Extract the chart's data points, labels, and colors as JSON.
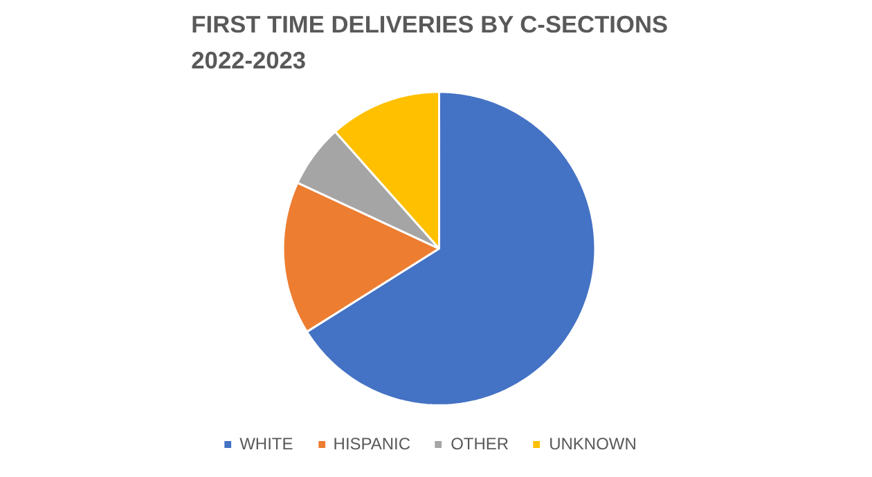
{
  "chart_data": {
    "type": "pie",
    "title": "FIRST TIME DELIVERIES BY C-SECTIONS\n2022-2023",
    "categories": [
      "WHITE",
      "HISPANIC",
      "OTHER",
      "UNKNOWN"
    ],
    "values": [
      66.1,
      15.8,
      6.5,
      11.6
    ],
    "colors": [
      "#4472c4",
      "#ed7d31",
      "#a5a5a5",
      "#ffc000"
    ],
    "legend": "bottom"
  }
}
